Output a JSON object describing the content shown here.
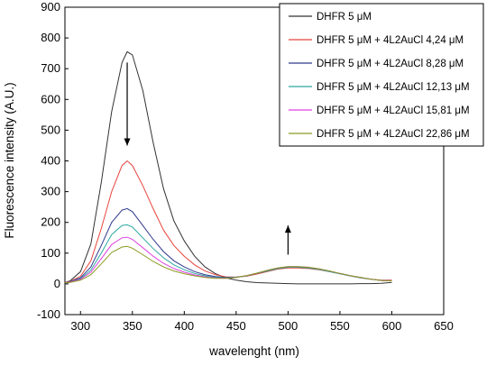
{
  "chart_data": {
    "type": "line",
    "title": "",
    "xlabel": "wavelenght (nm)",
    "ylabel": "Fluorescence intensity (A.U.)",
    "xlim": [
      285,
      650
    ],
    "ylim": [
      -100,
      900
    ],
    "xticks": [
      "300",
      "350",
      "400",
      "450",
      "500",
      "550",
      "600",
      "650"
    ],
    "yticks": [
      "-100",
      "0",
      "100",
      "200",
      "300",
      "400",
      "500",
      "600",
      "700",
      "800",
      "900"
    ],
    "legend_position": "top-right",
    "series": [
      {
        "name": "DHFR 5 μM",
        "color": "#333333",
        "x": [
          285,
          290,
          300,
          310,
          320,
          330,
          340,
          345,
          350,
          360,
          370,
          380,
          390,
          400,
          410,
          420,
          430,
          440,
          450,
          460,
          470,
          480,
          490,
          500,
          510,
          520,
          530,
          540,
          550,
          560,
          570,
          580,
          590,
          600
        ],
        "y": [
          4,
          10,
          40,
          130,
          330,
          560,
          720,
          755,
          745,
          630,
          460,
          310,
          205,
          140,
          90,
          55,
          33,
          20,
          12,
          7,
          4,
          3,
          2,
          1,
          0,
          0,
          0,
          0,
          0,
          0,
          1,
          1,
          2,
          5
        ]
      },
      {
        "name": "DHFR 5 μM + 4L2AuCl 4,24 μM",
        "color": "#e8443c",
        "x": [
          285,
          290,
          300,
          310,
          320,
          330,
          340,
          345,
          350,
          360,
          370,
          380,
          390,
          400,
          410,
          420,
          430,
          440,
          450,
          460,
          470,
          480,
          490,
          500,
          510,
          520,
          530,
          540,
          550,
          560,
          570,
          580,
          590,
          600
        ],
        "y": [
          4,
          8,
          25,
          75,
          180,
          300,
          385,
          400,
          385,
          320,
          245,
          175,
          125,
          90,
          62,
          42,
          30,
          23,
          22,
          25,
          32,
          40,
          48,
          52,
          52,
          50,
          46,
          40,
          33,
          26,
          20,
          15,
          12,
          12
        ]
      },
      {
        "name": "DHFR 5 μM + 4L2AuCl 8,28 μM",
        "color": "#2e3a8c",
        "x": [
          285,
          290,
          300,
          310,
          320,
          330,
          340,
          345,
          350,
          360,
          370,
          380,
          390,
          400,
          410,
          420,
          430,
          440,
          450,
          460,
          470,
          480,
          490,
          500,
          510,
          520,
          530,
          540,
          550,
          560,
          570,
          580,
          590,
          600
        ],
        "y": [
          3,
          7,
          20,
          55,
          125,
          200,
          240,
          245,
          235,
          190,
          145,
          105,
          75,
          55,
          40,
          30,
          24,
          21,
          22,
          26,
          34,
          42,
          50,
          54,
          54,
          52,
          47,
          40,
          33,
          26,
          20,
          15,
          11,
          10
        ]
      },
      {
        "name": "DHFR 5 μM + 4L2AuCl 12,13 μM",
        "color": "#2aa6a0",
        "x": [
          285,
          290,
          300,
          310,
          320,
          330,
          340,
          345,
          350,
          360,
          370,
          380,
          390,
          400,
          410,
          420,
          430,
          440,
          450,
          460,
          470,
          480,
          490,
          500,
          510,
          520,
          530,
          540,
          550,
          560,
          570,
          580,
          590,
          600
        ],
        "y": [
          3,
          6,
          17,
          45,
          100,
          160,
          190,
          192,
          185,
          150,
          115,
          85,
          62,
          46,
          34,
          26,
          21,
          19,
          21,
          26,
          34,
          42,
          50,
          54,
          54,
          52,
          47,
          40,
          33,
          26,
          20,
          15,
          11,
          10
        ]
      },
      {
        "name": "DHFR 5 μM + 4L2AuCl 15,81 μM",
        "color": "#e040e0",
        "x": [
          285,
          290,
          300,
          310,
          320,
          330,
          340,
          345,
          350,
          360,
          370,
          380,
          390,
          400,
          410,
          420,
          430,
          440,
          450,
          460,
          470,
          480,
          490,
          500,
          510,
          520,
          530,
          540,
          550,
          560,
          570,
          580,
          590,
          600
        ],
        "y": [
          3,
          6,
          15,
          38,
          82,
          128,
          150,
          152,
          145,
          118,
          90,
          67,
          50,
          38,
          29,
          23,
          19,
          18,
          21,
          27,
          35,
          44,
          52,
          56,
          56,
          54,
          49,
          42,
          34,
          27,
          21,
          15,
          11,
          10
        ]
      },
      {
        "name": "DHFR 5 μM + 4L2AuCl 22,86 μM",
        "color": "#8a9a1e",
        "x": [
          285,
          290,
          300,
          310,
          320,
          330,
          340,
          345,
          350,
          360,
          370,
          380,
          390,
          400,
          410,
          420,
          430,
          440,
          450,
          460,
          470,
          480,
          490,
          500,
          510,
          520,
          530,
          540,
          550,
          560,
          570,
          580,
          590,
          600
        ],
        "y": [
          3,
          5,
          12,
          30,
          65,
          102,
          120,
          122,
          116,
          95,
          73,
          55,
          42,
          33,
          26,
          21,
          18,
          18,
          21,
          27,
          35,
          44,
          52,
          56,
          56,
          54,
          49,
          42,
          34,
          27,
          21,
          15,
          11,
          10
        ]
      }
    ],
    "annotations": [
      {
        "type": "arrow-down",
        "x": 345,
        "y_from": 720,
        "y_to": 450
      },
      {
        "type": "arrow-up",
        "x": 500,
        "y_from": 95,
        "y_to": 190
      }
    ]
  }
}
